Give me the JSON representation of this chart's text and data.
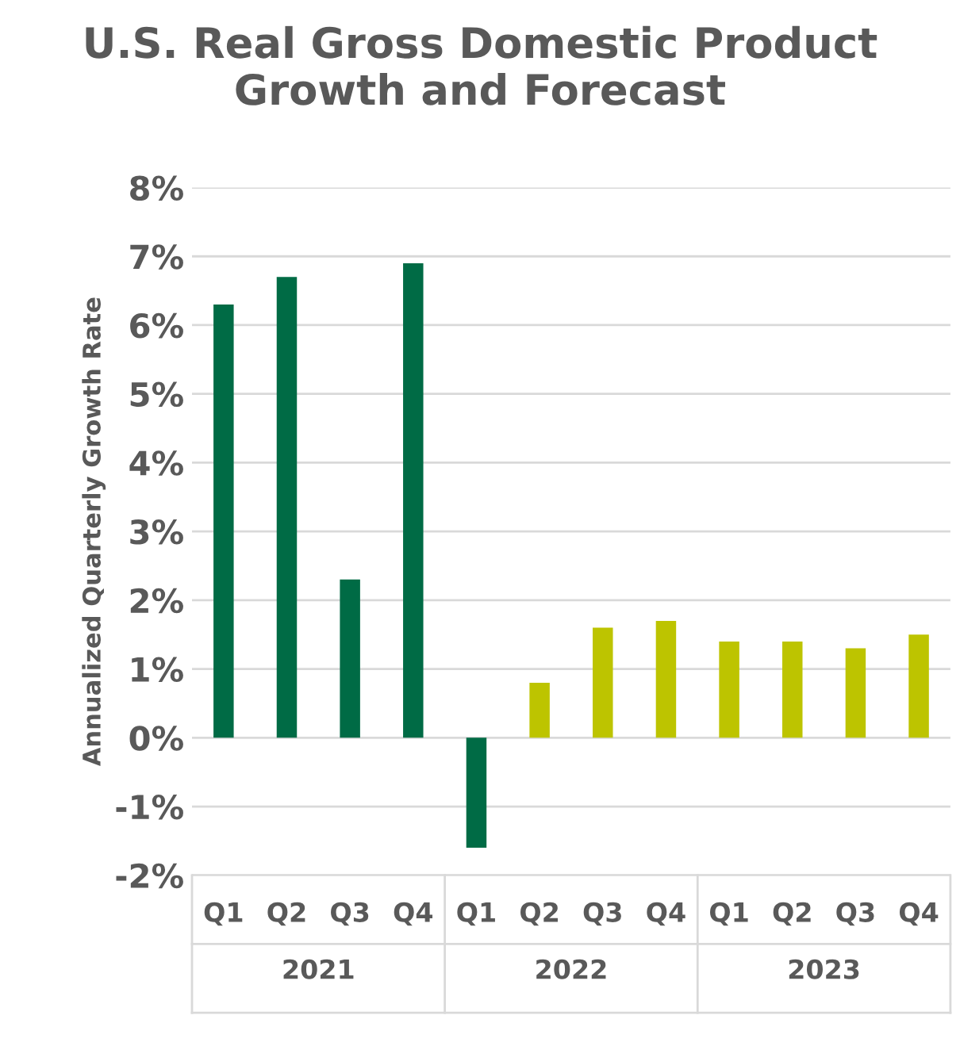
{
  "chart_data": {
    "type": "bar",
    "title": "U.S. Real Gross Domestic Product Growth and Forecast",
    "ylabel": "Annualized Quarterly Growth Rate",
    "categories": [
      "Q1",
      "Q2",
      "Q3",
      "Q4",
      "Q1",
      "Q2",
      "Q3",
      "Q4",
      "Q1",
      "Q2",
      "Q3",
      "Q4"
    ],
    "annotations": [
      "2021",
      "2022",
      "2023"
    ],
    "values": [
      6.3,
      6.7,
      2.3,
      6.9,
      -1.6,
      0.8,
      1.6,
      1.7,
      1.4,
      1.4,
      1.3,
      1.5
    ],
    "colors": [
      "#006b45",
      "#006b45",
      "#006b45",
      "#006b45",
      "#006b45",
      "#bdc400",
      "#bdc400",
      "#bdc400",
      "#bdc400",
      "#bdc400",
      "#bdc400",
      "#bdc400"
    ],
    "ylim": [
      -2,
      8
    ],
    "yticks": [
      {
        "value": -2,
        "label": "-2%"
      },
      {
        "value": -1,
        "label": "-1%"
      },
      {
        "value": 0,
        "label": "0%"
      },
      {
        "value": 1,
        "label": "1%"
      },
      {
        "value": 2,
        "label": "2%"
      },
      {
        "value": 3,
        "label": "3%"
      },
      {
        "value": 4,
        "label": "4%"
      },
      {
        "value": 5,
        "label": "5%"
      },
      {
        "value": 6,
        "label": "6%"
      },
      {
        "value": 7,
        "label": "7%"
      },
      {
        "value": 8,
        "label": "8%"
      }
    ],
    "grid": "y"
  }
}
